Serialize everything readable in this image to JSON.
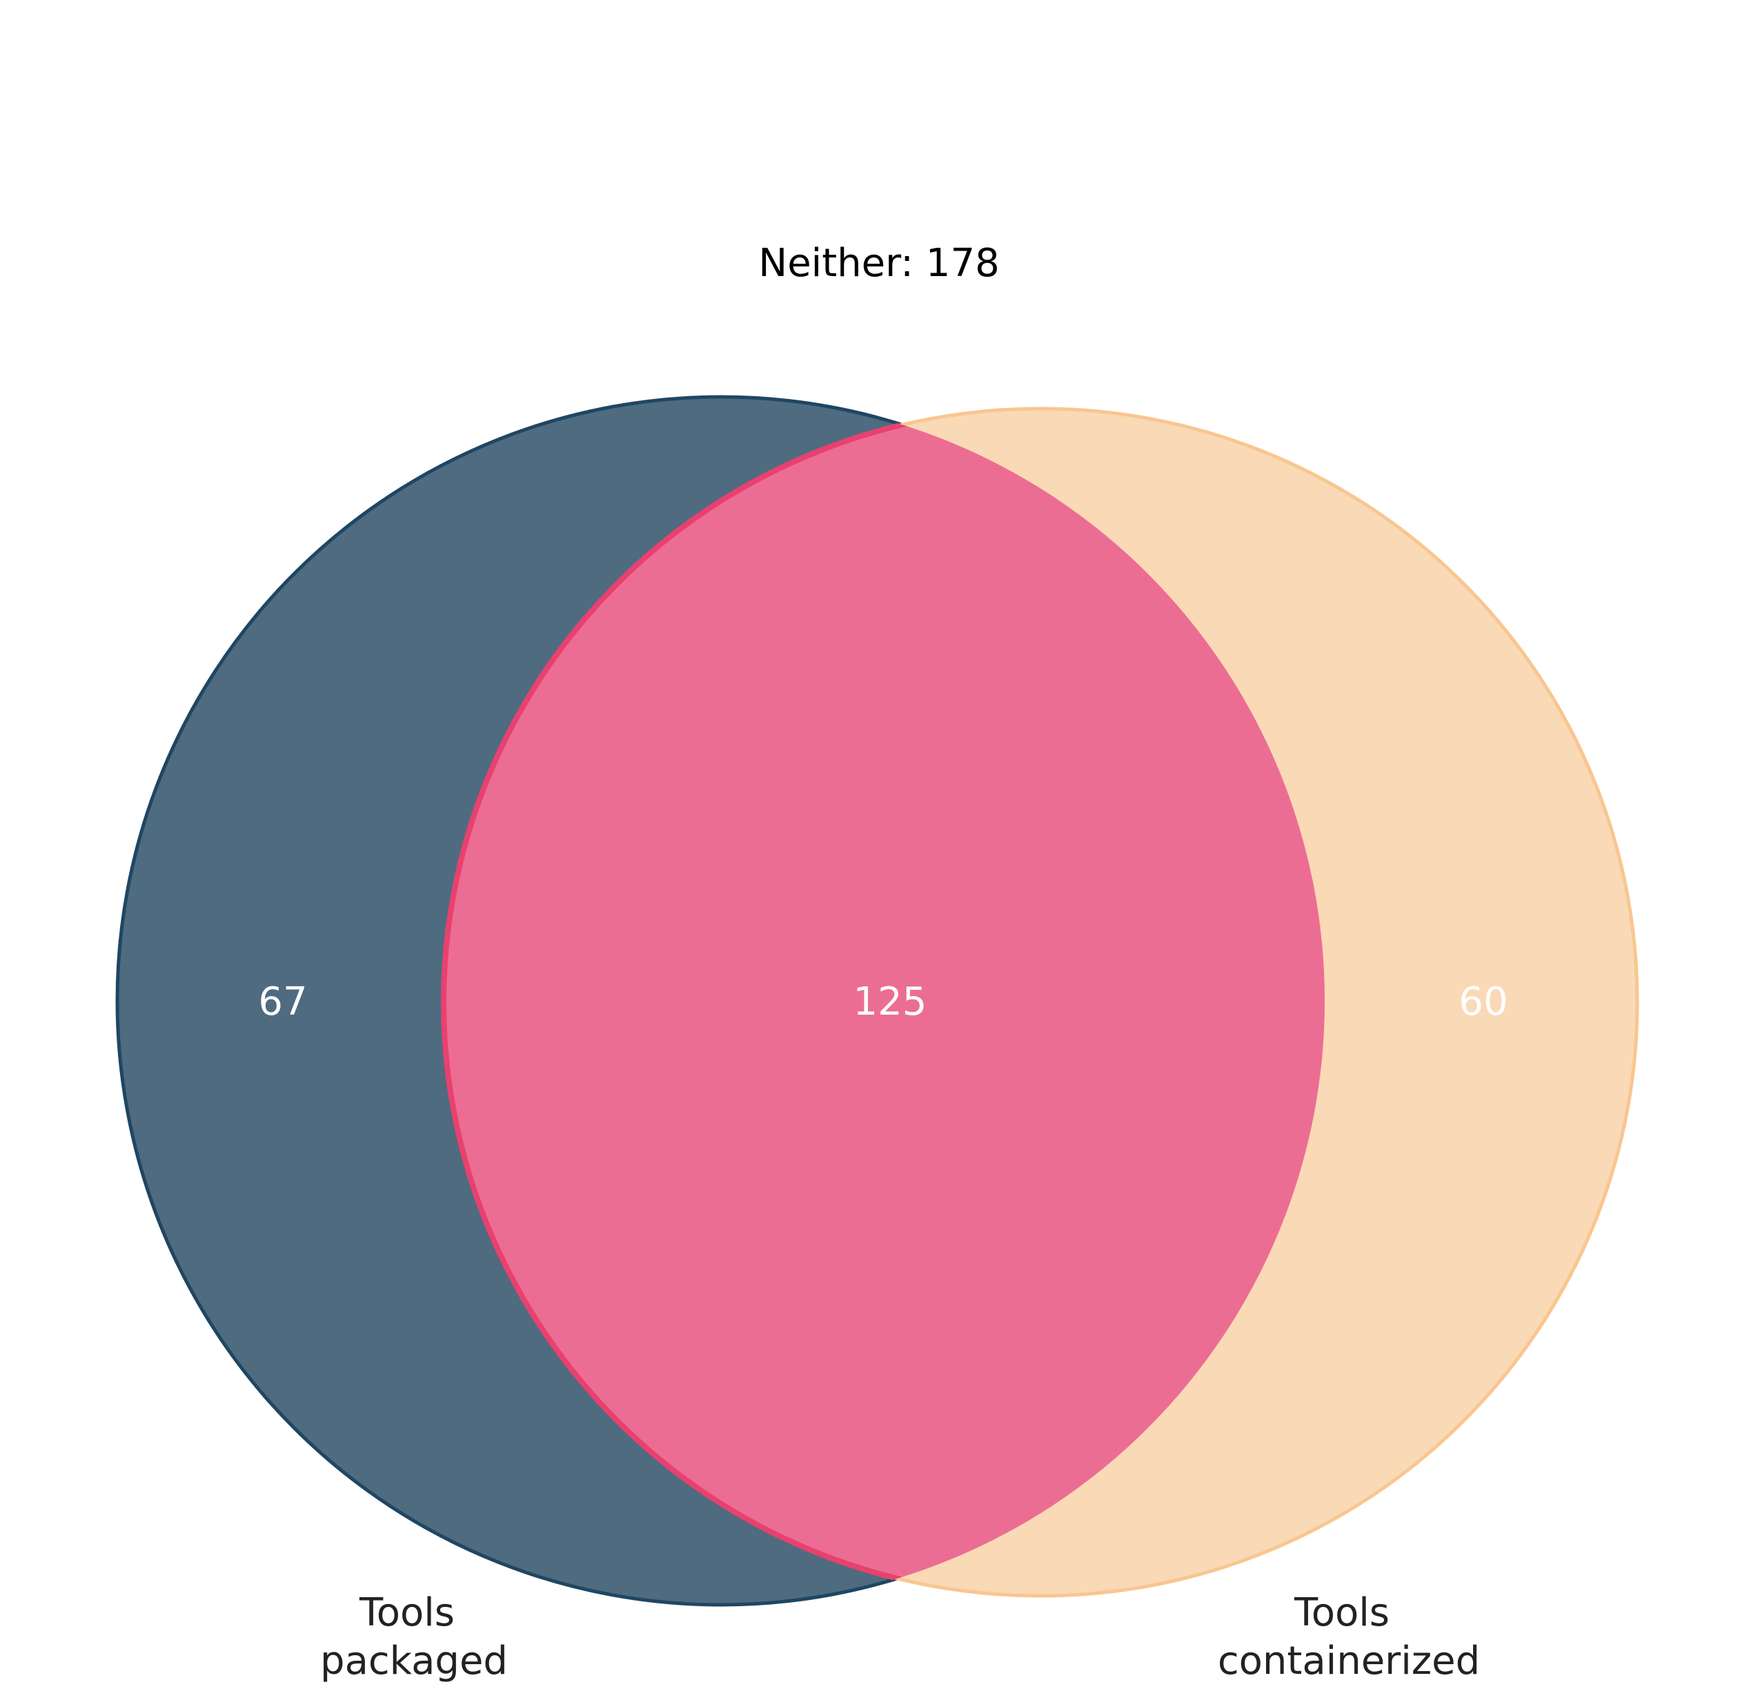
{
  "title": "Neither: 178",
  "sets": [
    {
      "id": "packaged",
      "label_lines": [
        "Tools",
        "packaged"
      ],
      "only_count": "67",
      "color": "#1f4662"
    },
    {
      "id": "containerized",
      "label_lines": [
        "Tools",
        "containerized"
      ],
      "only_count": "60",
      "color": "#f9c68f"
    }
  ],
  "intersection": {
    "count": "125",
    "color": "#ec6d93",
    "edge_color": "#e8416f"
  }
}
